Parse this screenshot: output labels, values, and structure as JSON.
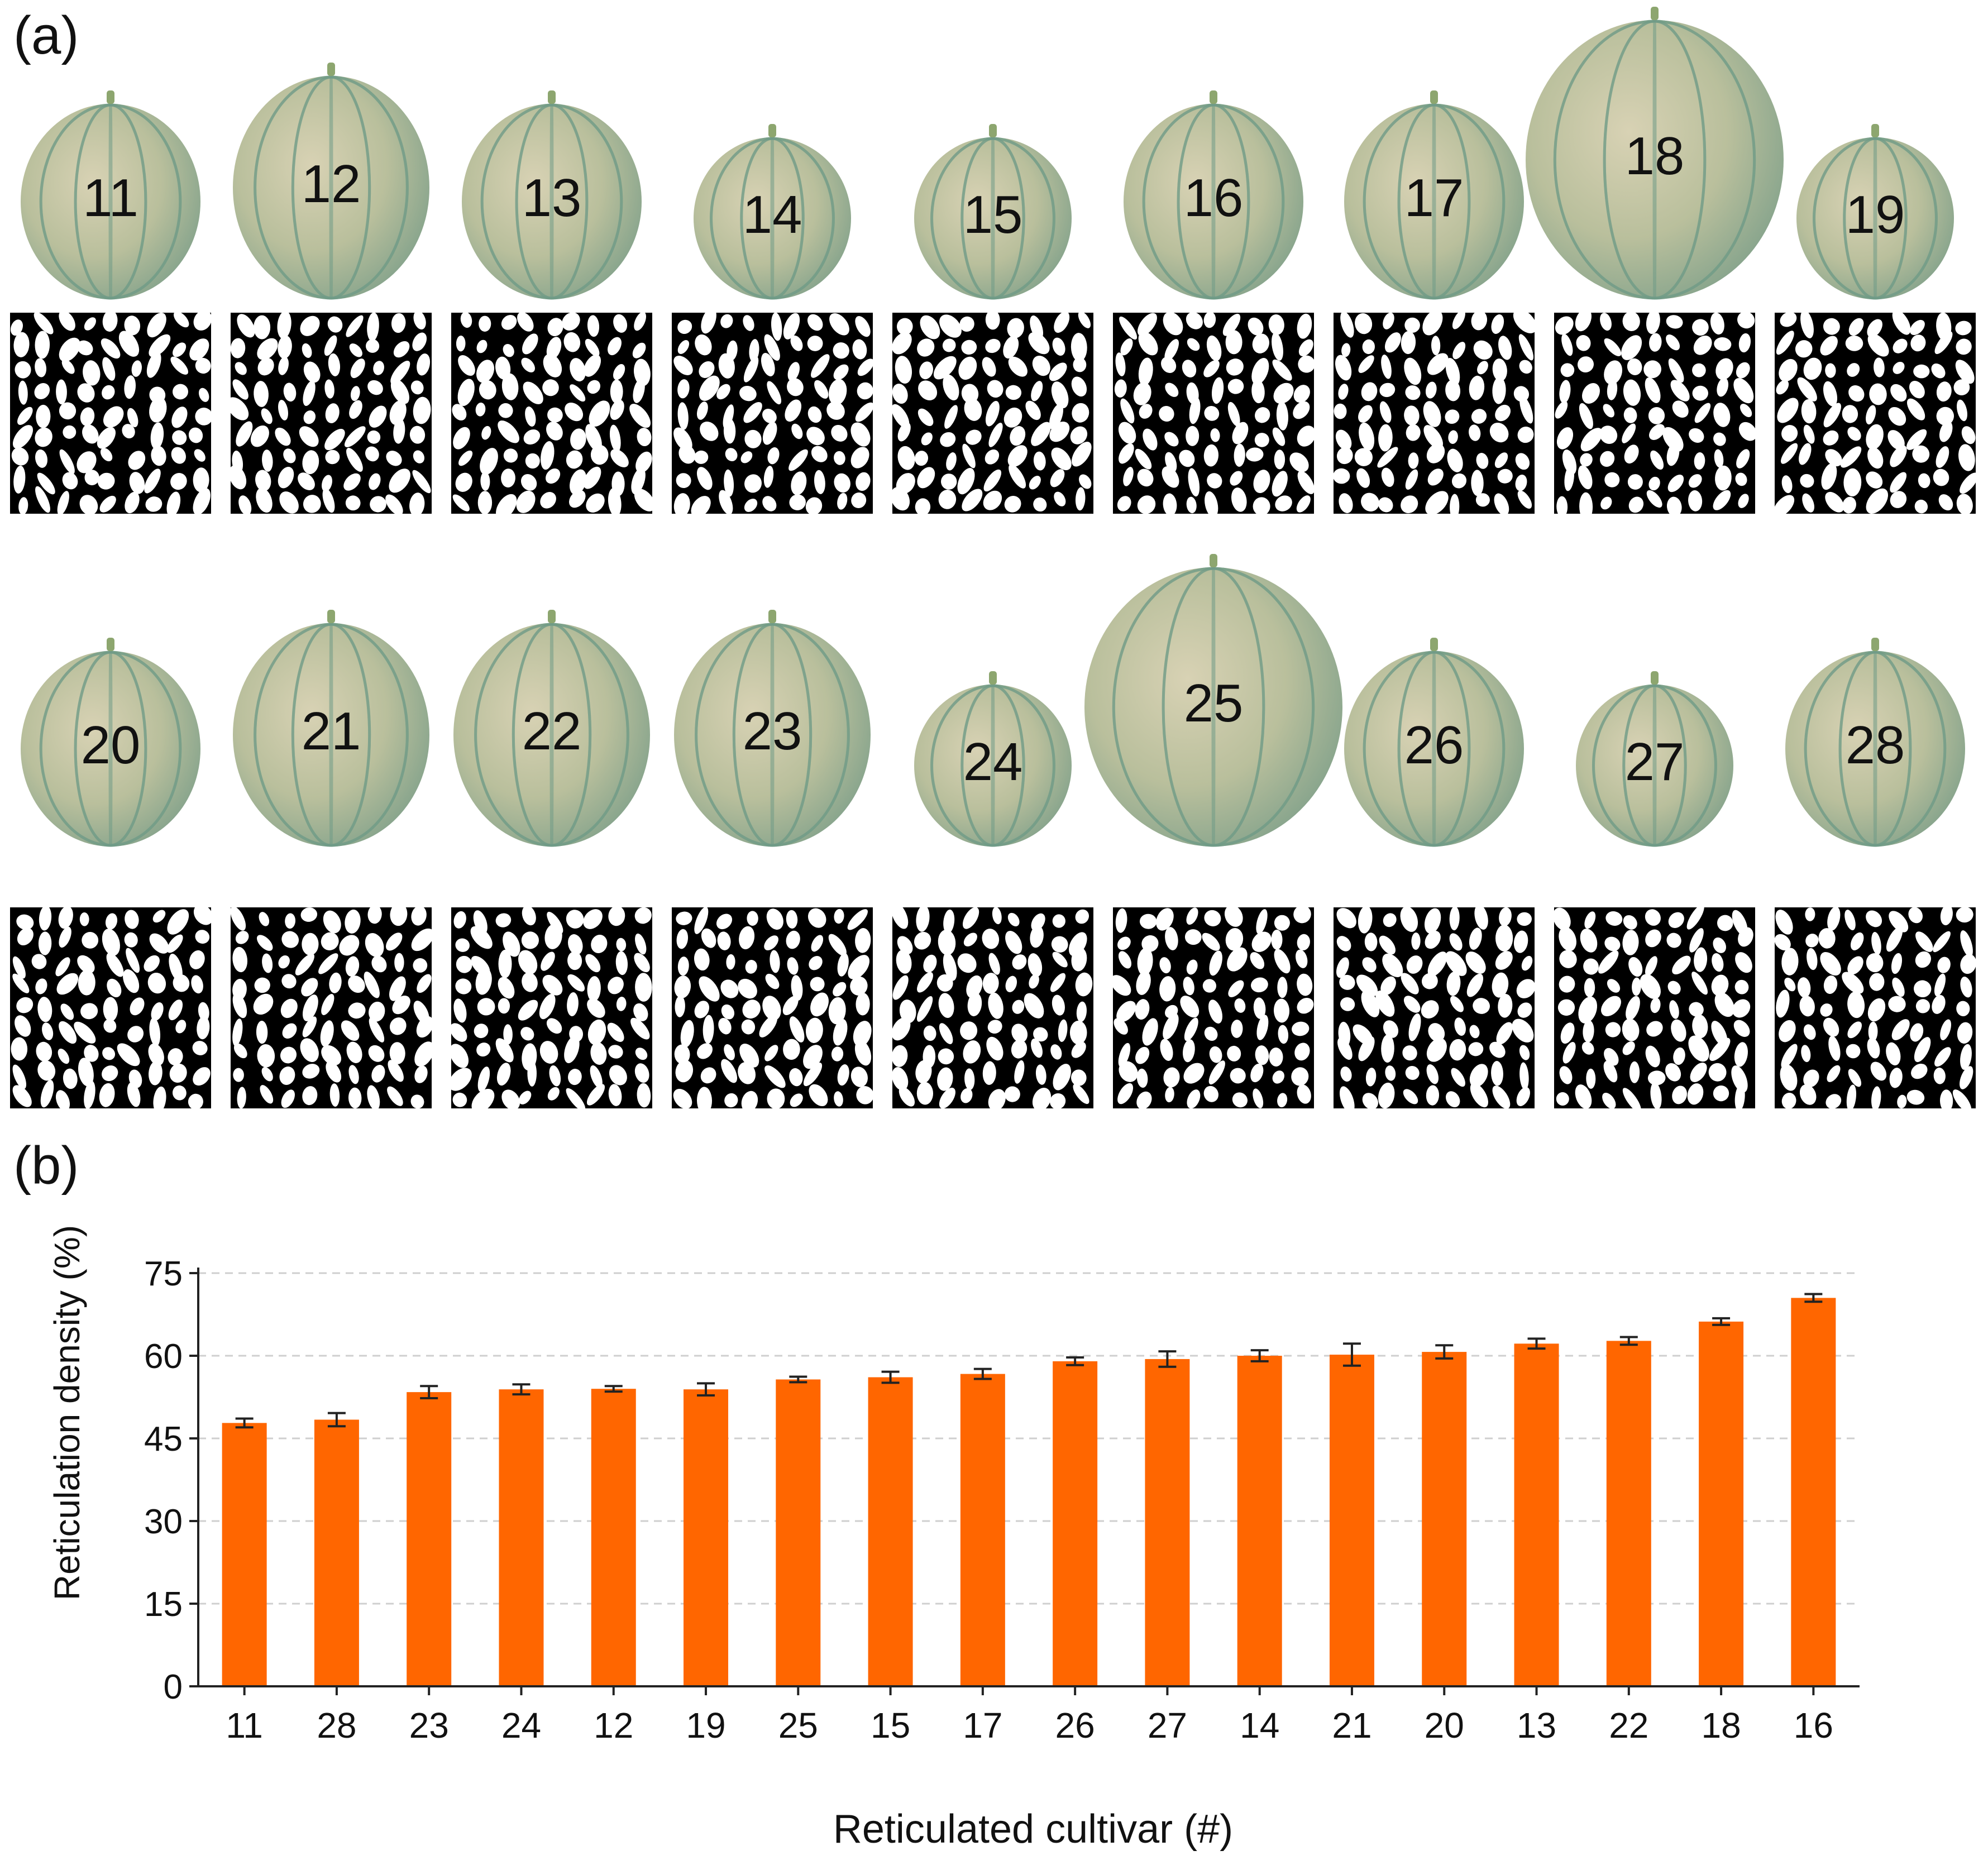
{
  "panel_a": {
    "label": "(a)",
    "rows": [
      [
        {
          "number": "11",
          "size": "medium"
        },
        {
          "number": "12",
          "size": "large"
        },
        {
          "number": "13",
          "size": "medium"
        },
        {
          "number": "14",
          "size": "small"
        },
        {
          "number": "15",
          "size": "small"
        },
        {
          "number": "16",
          "size": "medium"
        },
        {
          "number": "17",
          "size": "medium"
        },
        {
          "number": "18",
          "size": "xlarge"
        },
        {
          "number": "19",
          "size": "small"
        }
      ],
      [
        {
          "number": "20",
          "size": "medium"
        },
        {
          "number": "21",
          "size": "large"
        },
        {
          "number": "22",
          "size": "large"
        },
        {
          "number": "23",
          "size": "large"
        },
        {
          "number": "24",
          "size": "small"
        },
        {
          "number": "25",
          "size": "xlarge"
        },
        {
          "number": "26",
          "size": "medium"
        },
        {
          "number": "27",
          "size": "small"
        },
        {
          "number": "28",
          "size": "medium"
        }
      ]
    ]
  },
  "panel_b": {
    "label": "(b)"
  },
  "chart_data": {
    "type": "bar",
    "categories": [
      "11",
      "28",
      "23",
      "24",
      "12",
      "19",
      "25",
      "15",
      "17",
      "26",
      "27",
      "14",
      "21",
      "20",
      "13",
      "22",
      "18",
      "16"
    ],
    "values": [
      47.8,
      48.4,
      53.4,
      53.9,
      54.0,
      53.9,
      55.7,
      56.1,
      56.7,
      59.0,
      59.4,
      60.0,
      60.2,
      60.7,
      62.2,
      62.7,
      66.2,
      70.5
    ],
    "errors": [
      0.8,
      1.2,
      1.1,
      0.9,
      0.5,
      1.1,
      0.5,
      1.0,
      0.9,
      0.7,
      1.4,
      1.0,
      2.0,
      1.2,
      0.9,
      0.7,
      0.6,
      0.7
    ],
    "title": "",
    "xlabel": "Reticulated cultivar (#)",
    "ylabel": "Reticulation density (%)",
    "ylim": [
      0,
      75
    ],
    "yticks": [
      "0",
      "15",
      "30",
      "45",
      "60",
      "75"
    ],
    "grid": true,
    "bar_color": "#ff6600"
  }
}
